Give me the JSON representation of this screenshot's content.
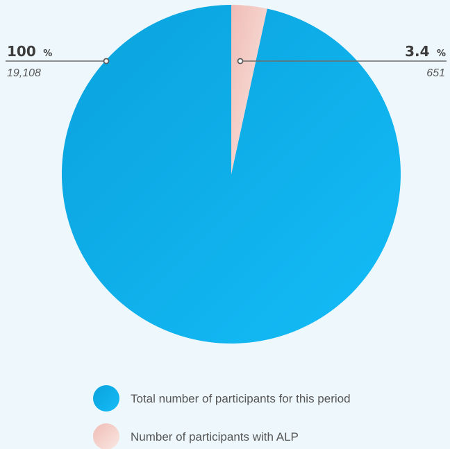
{
  "chart_data": {
    "type": "pie",
    "title": "",
    "series": [
      {
        "name": "Total number of participants for this period",
        "percent": 100,
        "count": "19,108",
        "color": "#0aa8e6",
        "color_light": "#12b7f5"
      },
      {
        "name": "Number of participants with ALP",
        "percent": 3.4,
        "count": "651",
        "color": "#f2c6c0",
        "color_light": "#f9e6e0"
      }
    ],
    "labels": [
      {
        "value": "100",
        "unit": "%",
        "count": "19,108"
      },
      {
        "value": "3.4",
        "unit": "%",
        "count": "651"
      }
    ],
    "legend": {
      "position": "bottom",
      "items": [
        {
          "label": "Total number of participants for this period"
        },
        {
          "label": "Number of participants with ALP"
        }
      ]
    }
  }
}
